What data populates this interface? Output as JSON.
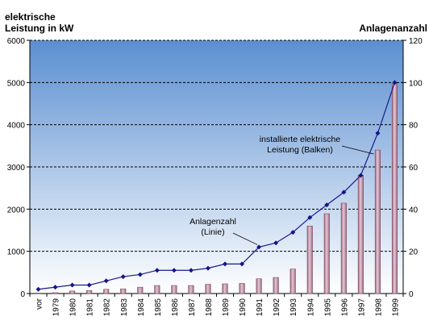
{
  "chart_data": {
    "type": "bar",
    "left_axis_title": "elektrische\nLeistung in kW",
    "right_axis_title": "Anlagenanzahl",
    "categories": [
      "vor",
      "1979",
      "1980",
      "1981",
      "1982",
      "1983",
      "1984",
      "1985",
      "1986",
      "1987",
      "1988",
      "1989",
      "1990",
      "1991",
      "1992",
      "1993",
      "1994",
      "1995",
      "1996",
      "1997",
      "1998",
      "1999"
    ],
    "series": [
      {
        "name": "installierte elektrische Leistung (Balken)",
        "kind": "bar",
        "axis": "left",
        "values": [
          10,
          20,
          60,
          70,
          100,
          110,
          150,
          190,
          190,
          190,
          220,
          230,
          240,
          350,
          380,
          580,
          1600,
          1890,
          2140,
          2800,
          3400,
          4980
        ]
      },
      {
        "name": "Anlagenzahl (Linie)",
        "kind": "line",
        "axis": "right",
        "values": [
          2,
          3,
          4,
          4,
          6,
          8,
          9,
          11,
          11,
          11,
          12,
          14,
          14,
          22,
          24,
          29,
          36,
          42,
          48,
          56,
          76,
          100
        ]
      }
    ],
    "annotations": [
      {
        "text": "installierte elektrische\nLeistung (Balken)",
        "points_to": "1998"
      },
      {
        "text": "Anlagenzahl\n(Linie)",
        "points_to": "1991"
      }
    ],
    "ylim_left": [
      0,
      6000
    ],
    "ylim_right": [
      0,
      120
    ],
    "yticks_left": [
      "0",
      "1000",
      "2000",
      "3000",
      "4000",
      "5000",
      "6000"
    ],
    "yticks_right": [
      "0",
      "20",
      "40",
      "60",
      "80",
      "100",
      "120"
    ],
    "grid": true,
    "colors": {
      "bar_fill_top": "#e8c8d8",
      "bar_fill_bottom": "#9a6a80",
      "bar_edge": "#7a4a5e",
      "line": "#1a1a8c",
      "marker": "#14148a",
      "background_top": "#5b8fd1",
      "background_bottom": "#ffffff",
      "grid": "#000000"
    }
  }
}
